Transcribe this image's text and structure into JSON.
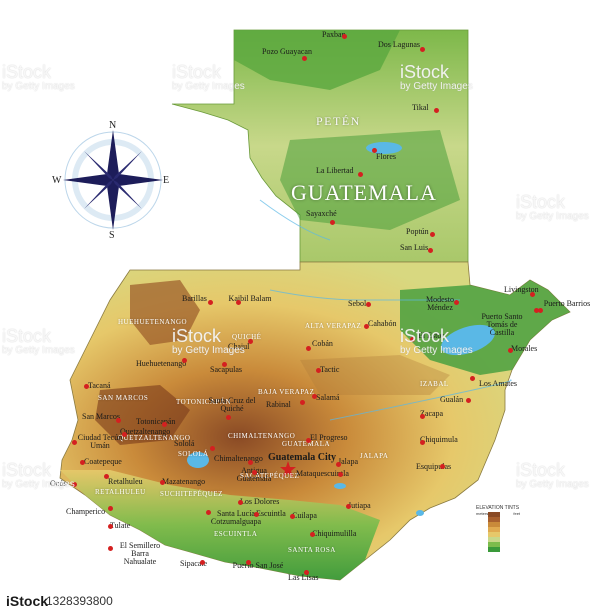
{
  "country_name": "GUATEMALA",
  "capital": "Guatemala City",
  "compass": {
    "n": "N",
    "s": "S",
    "e": "E",
    "w": "W"
  },
  "legend": {
    "title": "ELEVATION TINTS",
    "unit_left": "meters",
    "unit_right": "feet"
  },
  "regions": [
    {
      "id": "peten",
      "label": "PETÉN"
    },
    {
      "id": "huehuetenango",
      "label": "HUEHUETENANGO"
    },
    {
      "id": "alta-verapaz",
      "label": "ALTA VERAPAZ"
    },
    {
      "id": "quiche",
      "label": "QUICHÉ"
    },
    {
      "id": "baja-verapaz",
      "label": "BAJA VERAPAZ"
    },
    {
      "id": "san-marcos",
      "label": "SAN MARCOS"
    },
    {
      "id": "totonicapan",
      "label": "TOTONICAPÁN"
    },
    {
      "id": "quetzaltenango",
      "label": "QUETZALTENANGO"
    },
    {
      "id": "chimaltenango",
      "label": "CHIMALTENANGO"
    },
    {
      "id": "guatemala",
      "label": "GUATEMALA"
    },
    {
      "id": "escuintla",
      "label": "ESCUINTLA"
    },
    {
      "id": "santa-rosa",
      "label": "SANTA ROSA"
    },
    {
      "id": "jalapa",
      "label": "JALAPA"
    },
    {
      "id": "izabal",
      "label": "IZABAL"
    },
    {
      "id": "suchitepequez",
      "label": "SUCHITEPÉQUEZ"
    },
    {
      "id": "retalhuleu",
      "label": "RETALHULEU"
    },
    {
      "id": "solola",
      "label": "SOLOLÁ"
    },
    {
      "id": "sacatepequez",
      "label": "SACATEPÉQUEZ"
    }
  ],
  "cities": [
    {
      "id": "paxban",
      "label": "Paxban"
    },
    {
      "id": "dos-lagunas",
      "label": "Dos Lagunas"
    },
    {
      "id": "pozo-guayacan",
      "label": "Pozo Guayacan"
    },
    {
      "id": "tikal",
      "label": "Tikal"
    },
    {
      "id": "flores",
      "label": "Flores"
    },
    {
      "id": "la-libertad",
      "label": "La Libertad"
    },
    {
      "id": "sayaxche",
      "label": "Sayaxché"
    },
    {
      "id": "poptun",
      "label": "Poptún"
    },
    {
      "id": "san-luis",
      "label": "San Luis"
    },
    {
      "id": "barillas",
      "label": "Barillas"
    },
    {
      "id": "kaibil-balam",
      "label": "Kaibil Balam"
    },
    {
      "id": "sebol",
      "label": "Sebol"
    },
    {
      "id": "modesto-mendez",
      "label": "Modesto Méndez"
    },
    {
      "id": "livingston",
      "label": "Livingston"
    },
    {
      "id": "puerto-barrios",
      "label": "Puerto Barrios"
    },
    {
      "id": "puerto-santo-tomas",
      "label": "Puerto Santo Tomás de Castilla"
    },
    {
      "id": "chajul",
      "label": "Chajul"
    },
    {
      "id": "coban",
      "label": "Cobán"
    },
    {
      "id": "cahabon",
      "label": "Cahabón"
    },
    {
      "id": "el-estor",
      "label": "El Estor"
    },
    {
      "id": "morales",
      "label": "Morales"
    },
    {
      "id": "huehuetenango",
      "label": "Huehuetenango"
    },
    {
      "id": "sacapulas",
      "label": "Sacapulas"
    },
    {
      "id": "tactic",
      "label": "Tactic"
    },
    {
      "id": "tacana",
      "label": "Tacaná"
    },
    {
      "id": "santa-cruz",
      "label": "Santa Cruz del Quiché"
    },
    {
      "id": "rabinal",
      "label": "Rabinal"
    },
    {
      "id": "salama",
      "label": "Salamá"
    },
    {
      "id": "los-amates",
      "label": "Los Amates"
    },
    {
      "id": "gualan",
      "label": "Gualán"
    },
    {
      "id": "san-marcos",
      "label": "San Marcos"
    },
    {
      "id": "quetzaltenango",
      "label": "Quetzaltenango"
    },
    {
      "id": "totonicapan",
      "label": "Totonicapán"
    },
    {
      "id": "zacapa",
      "label": "Zacapa"
    },
    {
      "id": "ciudad-tecun-uman",
      "label": "Ciudad Tecún Umán"
    },
    {
      "id": "solola",
      "label": "Sololá"
    },
    {
      "id": "el-progreso",
      "label": "El Progreso"
    },
    {
      "id": "chiquimula",
      "label": "Chiquimula"
    },
    {
      "id": "coatepeque",
      "label": "Coatepeque"
    },
    {
      "id": "chimaltenango",
      "label": "Chimaltenango"
    },
    {
      "id": "jalapa",
      "label": "Jalapa"
    },
    {
      "id": "ocos",
      "label": "Ocós"
    },
    {
      "id": "retalhuleu",
      "label": "Retalhuleu"
    },
    {
      "id": "antigua",
      "label": "Antigua Guatemala"
    },
    {
      "id": "mataquescuintla",
      "label": "Mataquescuintla"
    },
    {
      "id": "esquipulas",
      "label": "Esquipulas"
    },
    {
      "id": "mazatenango",
      "label": "Mazatenango"
    },
    {
      "id": "champerico",
      "label": "Champerico"
    },
    {
      "id": "los-dolores",
      "label": "Los Dolores"
    },
    {
      "id": "jutiapa",
      "label": "Jutiapa"
    },
    {
      "id": "santa-lucia",
      "label": "Santa Lucía Cotzumalguapa"
    },
    {
      "id": "escuintla",
      "label": "Escuintla"
    },
    {
      "id": "cuilapa",
      "label": "Cuilapa"
    },
    {
      "id": "tulate",
      "label": "Tulate"
    },
    {
      "id": "chiquimulilla",
      "label": "Chiquimulilla"
    },
    {
      "id": "el-semillero",
      "label": "El Semillero Barra Nahualate"
    },
    {
      "id": "sipacate",
      "label": "Sipacate"
    },
    {
      "id": "puerto-san-jose",
      "label": "Puerto San José"
    },
    {
      "id": "las-lisas",
      "label": "Las Lisas"
    }
  ],
  "watermark": {
    "brand": "iStock",
    "sub": "by Getty Images"
  },
  "footer": {
    "brand": "iStock",
    "id": "1328393800"
  },
  "colors": {
    "lowland": "#4a9e3a",
    "plain": "#c8d88a",
    "hills": "#e6c86a",
    "mountain": "#c98a3a",
    "peak": "#8a4a25",
    "water": "#5ab8e6",
    "city": "#d42020"
  }
}
